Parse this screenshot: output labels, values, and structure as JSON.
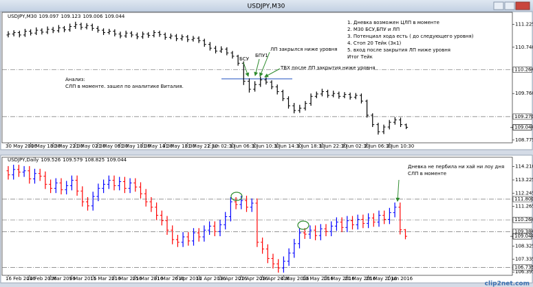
{
  "window_title": "USDJPY,M30",
  "watermark": "clip2net.com",
  "chart_data": [
    {
      "type": "ohlc",
      "symbol": "USDJPY,M30",
      "categories": [
        "30 May 2016",
        null,
        null,
        null,
        "30 May 18:30",
        null,
        null,
        null,
        "30 May 22:30",
        null,
        null,
        null,
        "31 May 02:30",
        null,
        null,
        null,
        "31 May 06:30",
        null,
        null,
        null,
        "31 May 10:30",
        null,
        null,
        null,
        "31 May 14:30",
        null,
        null,
        null,
        "31 May 18:30",
        null,
        null,
        null,
        "31 May 22:30",
        null,
        null,
        null,
        "1 Jun 02:30",
        null,
        null,
        null,
        "1 Jun 06:30",
        null,
        null,
        null,
        "1 Jun 10:30",
        null,
        null,
        null,
        "1 Jun 14:30",
        null,
        null,
        null,
        "1 Jun 18:30",
        null,
        null,
        null,
        "1 Jun 22:30",
        null,
        null,
        null,
        "2 Jun 02:30",
        null,
        null,
        null,
        "2 Jun 06:30",
        null,
        null,
        null,
        "2 Jun 10:30",
        null,
        null,
        null
      ],
      "series": [
        {
          "color": "#000000",
          "open": [
            111.0,
            111.02,
            111.05,
            111.0,
            111.08,
            111.04,
            111.1,
            111.06,
            111.12,
            111.09,
            111.15,
            111.11,
            111.18,
            111.22,
            111.16,
            111.2,
            111.14,
            111.1,
            111.05,
            111.08,
            111.02,
            110.98,
            111.04,
            111.0,
            110.96,
            111.02,
            110.99,
            111.05,
            111.01,
            110.95,
            110.98,
            110.92,
            110.96,
            110.9,
            110.93,
            110.88,
            110.8,
            110.72,
            110.66,
            110.7,
            110.62,
            110.55,
            110.4,
            110.02,
            109.85,
            109.95,
            110.05,
            110.0,
            109.9,
            109.8,
            109.65,
            109.5,
            109.4,
            109.45,
            109.55,
            109.7,
            109.75,
            109.8,
            109.72,
            109.76,
            109.7,
            109.74,
            109.68,
            109.72,
            109.6,
            109.3,
            109.1,
            108.95,
            109.05,
            109.15,
            109.2,
            109.097
          ],
          "high": [
            111.08,
            111.1,
            111.09,
            111.13,
            111.12,
            111.16,
            111.14,
            111.18,
            111.17,
            111.21,
            111.19,
            111.24,
            111.28,
            111.26,
            111.25,
            111.24,
            111.19,
            111.14,
            111.13,
            111.12,
            111.07,
            111.09,
            111.08,
            111.05,
            111.07,
            111.06,
            111.1,
            111.09,
            111.05,
            111.03,
            111.02,
            111.01,
            111.0,
            110.98,
            110.97,
            110.92,
            110.85,
            110.77,
            110.76,
            110.74,
            110.66,
            110.58,
            110.44,
            110.08,
            110.02,
            110.12,
            110.1,
            110.04,
            109.95,
            109.84,
            109.7,
            109.56,
            109.52,
            109.6,
            109.76,
            109.8,
            109.86,
            109.84,
            109.82,
            109.8,
            109.79,
            109.78,
            109.77,
            109.76,
            109.63,
            109.34,
            109.14,
            109.1,
            109.2,
            109.26,
            109.25,
            109.123
          ],
          "low": [
            110.95,
            110.97,
            110.95,
            110.96,
            110.99,
            111.0,
            111.01,
            111.02,
            111.04,
            111.05,
            111.06,
            111.07,
            111.13,
            111.11,
            111.12,
            111.09,
            111.05,
            111.0,
            111.01,
            110.97,
            110.93,
            110.94,
            110.95,
            110.91,
            110.92,
            110.94,
            110.95,
            110.96,
            110.9,
            110.91,
            110.87,
            110.88,
            110.85,
            110.86,
            110.83,
            110.75,
            110.67,
            110.61,
            110.62,
            110.57,
            110.5,
            110.35,
            109.94,
            109.78,
            109.8,
            109.9,
            109.95,
            109.85,
            109.74,
            109.6,
            109.44,
            109.34,
            109.35,
            109.4,
            109.5,
            109.66,
            109.7,
            109.67,
            109.68,
            109.65,
            109.66,
            109.63,
            109.64,
            109.55,
            109.25,
            109.05,
            108.89,
            108.9,
            109.0,
            109.1,
            109.05,
            109.006
          ],
          "close": [
            111.02,
            111.05,
            111.0,
            111.08,
            111.04,
            111.1,
            111.06,
            111.12,
            111.09,
            111.15,
            111.11,
            111.18,
            111.22,
            111.16,
            111.2,
            111.14,
            111.1,
            111.05,
            111.08,
            111.02,
            110.98,
            111.04,
            111.0,
            110.96,
            111.02,
            110.99,
            111.05,
            111.01,
            110.95,
            110.98,
            110.92,
            110.96,
            110.9,
            110.93,
            110.88,
            110.8,
            110.72,
            110.66,
            110.7,
            110.62,
            110.55,
            110.4,
            110.02,
            109.85,
            109.95,
            110.05,
            110.0,
            109.9,
            109.8,
            109.65,
            109.5,
            109.4,
            109.45,
            109.55,
            109.7,
            109.75,
            109.8,
            109.72,
            109.76,
            109.7,
            109.74,
            109.68,
            109.72,
            109.6,
            109.3,
            109.1,
            108.95,
            109.05,
            109.15,
            109.2,
            109.1,
            109.044
          ]
        }
      ],
      "ylim": [
        108.73,
        111.45
      ],
      "yticks": [
        108.775,
        {
          "value": 109.76,
          "label": "109.760"
        },
        {
          "value": 110.74,
          "label": "110.740"
        },
        111.225
      ],
      "levels": [
        110.264,
        {
          "value": 109.27,
          "label": "109.270"
        }
      ],
      "support_line": 110.07,
      "current_price": 109.044,
      "annotations": [
        "1. Дневка возможен ЦЛП в моменте",
        "2. М30 БСУ,БПУ и ЛП",
        "3. Потенциал хода есть ( до следующего уровня)",
        "4. Стоп 20 Тейк (3к1)",
        "5. вход после закрытия ЛП ниже уровня",
        "Итог Тейк",
        "Анализ:",
        "СЛП в моменте. зашел по аналитике Виталия.",
        "БСУ",
        "БПУ1",
        "ЛП закрылся ниже уровня",
        "ТВХ после ЛП закрытия ниже уровня"
      ]
    },
    {
      "type": "ohlc",
      "symbol": "USDJPY,Daily",
      "categories": [
        "16 Feb 2016",
        null,
        null,
        null,
        "24 Feb 2016",
        null,
        null,
        null,
        "3 Mar 2016",
        null,
        null,
        null,
        "9 Mar 2016",
        null,
        null,
        null,
        "15 Mar 2016",
        null,
        null,
        null,
        "21 Mar 2016",
        null,
        null,
        null,
        "25 Mar 2016",
        null,
        null,
        null,
        "31 Mar 2016",
        null,
        null,
        null,
        "6 Apr 2016",
        null,
        null,
        null,
        "12 Apr 2016",
        null,
        null,
        null,
        "18 Apr 2016",
        null,
        null,
        null,
        "22 Apr 2016",
        null,
        null,
        null,
        "28 Apr 2016",
        null,
        null,
        null,
        "4 May 2016",
        null,
        null,
        null,
        "10 May 2016",
        null,
        null,
        null,
        "16 May 2016",
        null,
        null,
        null,
        "20 May 2016",
        null,
        null,
        null,
        "26 May 2016",
        null,
        null,
        null,
        "1 Jun 2016",
        null,
        null,
        null
      ],
      "up_color": "#0000ff",
      "down_color": "#ff0000",
      "series": [
        {
          "open": [
            113.9,
            113.6,
            114.0,
            113.8,
            113.9,
            113.3,
            113.7,
            113.5,
            112.9,
            112.6,
            113.0,
            112.5,
            112.8,
            113.2,
            112.4,
            111.6,
            111.3,
            112.0,
            112.6,
            112.9,
            113.2,
            112.8,
            113.1,
            112.6,
            113.0,
            112.7,
            112.2,
            111.6,
            111.2,
            110.6,
            110.2,
            109.5,
            108.8,
            108.6,
            109.0,
            108.7,
            109.3,
            109.0,
            109.5,
            109.8,
            109.4,
            109.9,
            110.5,
            111.6,
            111.4,
            111.7,
            111.2,
            111.5,
            108.6,
            108.1,
            107.4,
            107.0,
            106.7,
            107.2,
            107.8,
            108.5,
            109.3,
            109.2,
            109.5,
            109.1,
            109.6,
            109.4,
            109.8,
            110.1,
            109.7,
            110.2,
            109.9,
            110.3,
            110.0,
            110.4,
            110.1,
            110.6,
            110.3,
            110.8,
            111.2,
            109.526
          ],
          "high": [
            114.25,
            114.35,
            114.35,
            114.25,
            114.25,
            114.05,
            114.05,
            113.85,
            113.25,
            113.35,
            113.35,
            113.15,
            113.55,
            113.55,
            112.75,
            111.95,
            112.35,
            112.95,
            113.25,
            113.55,
            113.55,
            113.45,
            113.45,
            113.35,
            113.35,
            113.05,
            112.55,
            111.95,
            111.55,
            110.95,
            110.55,
            109.85,
            109.15,
            109.35,
            109.35,
            109.65,
            109.65,
            109.85,
            110.15,
            110.15,
            110.25,
            110.85,
            111.95,
            111.95,
            112.05,
            112.05,
            111.85,
            111.85,
            108.95,
            108.45,
            107.75,
            107.35,
            107.55,
            108.15,
            108.85,
            109.65,
            109.65,
            109.85,
            109.85,
            109.95,
            109.95,
            110.15,
            110.45,
            110.45,
            110.55,
            110.55,
            110.65,
            110.65,
            110.75,
            110.75,
            110.95,
            110.95,
            111.15,
            111.55,
            111.55,
            109.579
          ],
          "low": [
            113.25,
            113.25,
            113.45,
            113.45,
            112.95,
            112.95,
            113.15,
            112.55,
            112.25,
            112.25,
            112.15,
            112.15,
            112.45,
            112.05,
            111.25,
            110.95,
            110.95,
            111.65,
            112.25,
            112.55,
            112.45,
            112.45,
            112.25,
            112.25,
            112.35,
            111.85,
            111.25,
            110.85,
            110.25,
            109.85,
            109.15,
            108.45,
            108.25,
            108.25,
            108.35,
            108.35,
            108.65,
            108.65,
            109.15,
            109.05,
            109.05,
            109.55,
            110.15,
            111.05,
            111.05,
            110.85,
            110.85,
            108.25,
            107.75,
            107.05,
            106.65,
            106.35,
            106.35,
            106.85,
            107.45,
            108.15,
            108.85,
            108.85,
            108.75,
            108.75,
            109.05,
            109.05,
            109.45,
            109.35,
            109.35,
            109.55,
            109.55,
            109.65,
            109.65,
            109.75,
            109.75,
            109.95,
            109.95,
            110.45,
            109.18,
            108.825
          ],
          "close": [
            113.6,
            114.0,
            113.8,
            113.9,
            113.3,
            113.7,
            113.5,
            112.9,
            112.6,
            113.0,
            112.5,
            112.8,
            113.2,
            112.4,
            111.6,
            111.3,
            112.0,
            112.6,
            112.9,
            113.2,
            112.8,
            113.1,
            112.6,
            113.0,
            112.7,
            112.2,
            111.6,
            111.2,
            110.6,
            110.2,
            109.5,
            108.8,
            108.6,
            109.0,
            108.7,
            109.3,
            109.0,
            109.5,
            109.8,
            109.4,
            109.9,
            110.5,
            111.6,
            111.4,
            111.7,
            111.2,
            111.5,
            108.6,
            108.1,
            107.4,
            107.0,
            106.7,
            107.2,
            107.8,
            108.5,
            109.3,
            109.2,
            109.5,
            109.1,
            109.6,
            109.4,
            109.8,
            110.1,
            109.7,
            110.2,
            109.9,
            110.3,
            110.0,
            110.4,
            110.1,
            110.6,
            110.3,
            110.8,
            111.2,
            109.526,
            109.044
          ]
        }
      ],
      "ylim": [
        106.2,
        114.55
      ],
      "yticks": [
        106.395,
        107.335,
        108.325,
        111.265,
        112.245,
        113.225,
        {
          "value": 114.21,
          "label": "114.210"
        }
      ],
      "levels": [
        {
          "value": 111.8,
          "label": "111.800"
        },
        110.264,
        109.384,
        106.735
      ],
      "current_price": 109.044,
      "annotations": [
        "Дневка не пербила ни хай ни лоу дня",
        "СЛП в моменте"
      ]
    }
  ]
}
